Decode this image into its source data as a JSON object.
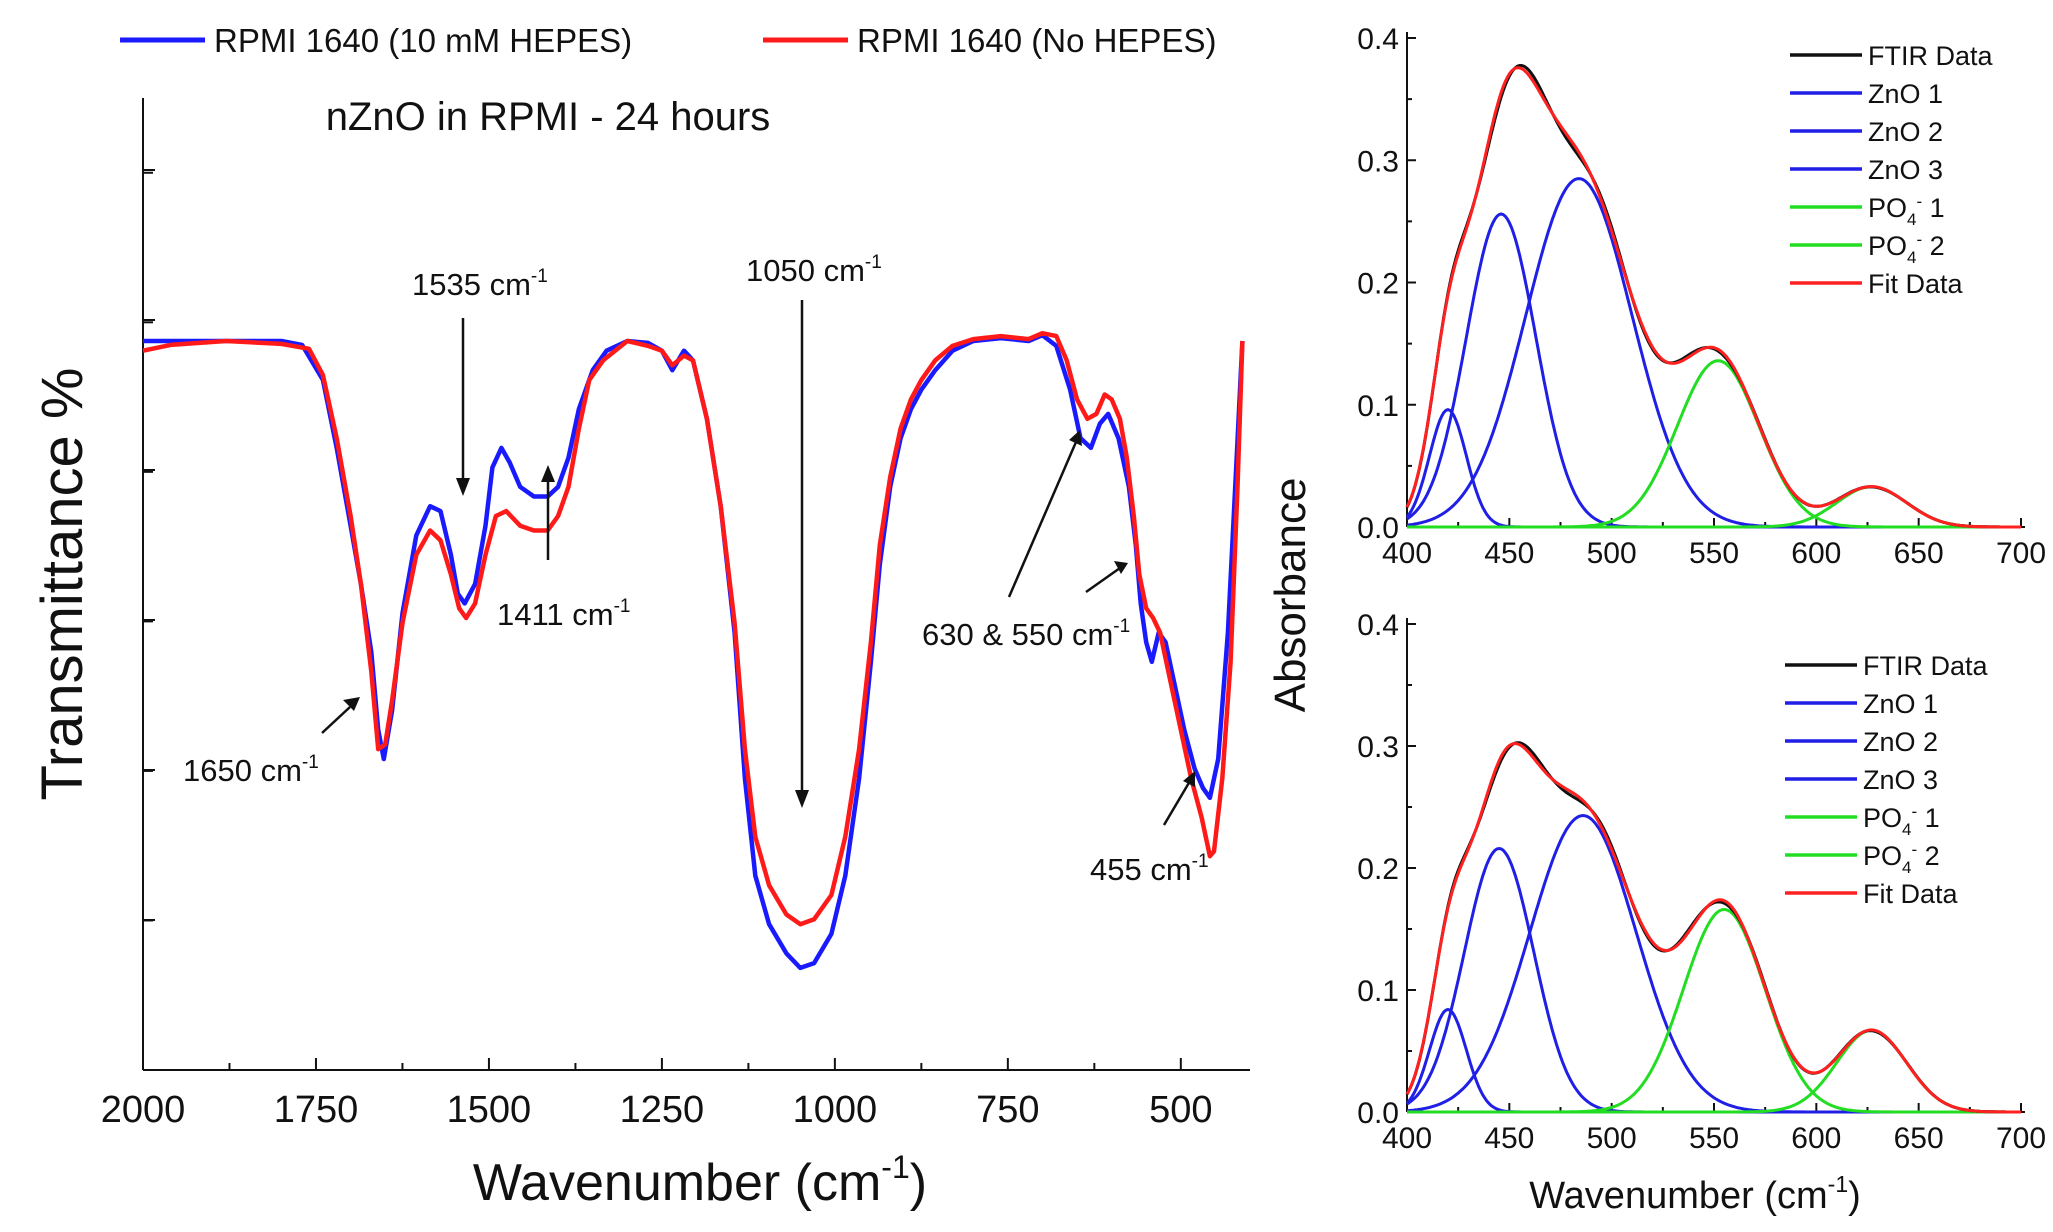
{
  "chart_data": [
    {
      "id": "left",
      "type": "line",
      "title": "nZnO in RPMI - 24 hours",
      "xlabel": "Wavenumber (cm",
      "xlabel_sup": "-1",
      "xlabel_tail": ")",
      "ylabel": "Transmittance %",
      "xlim": [
        2000,
        400
      ],
      "ylim": [
        0,
        100
      ],
      "xticks": [
        2000,
        1750,
        1500,
        1250,
        1000,
        750,
        500
      ],
      "yticks_labeled": false,
      "legend": {
        "placement": "top, above plot"
      },
      "series": [
        {
          "name": "RPMI 1640 (10 mM HEPES)",
          "color": "#1a1aff",
          "points": [
            [
              2000,
              75
            ],
            [
              1900,
              75
            ],
            [
              1800,
              75
            ],
            [
              1770,
              74.6
            ],
            [
              1740,
              71
            ],
            [
              1720,
              64
            ],
            [
              1700,
              56
            ],
            [
              1685,
              50
            ],
            [
              1670,
              43
            ],
            [
              1660,
              35
            ],
            [
              1652,
              32
            ],
            [
              1640,
              37
            ],
            [
              1625,
              47
            ],
            [
              1605,
              55
            ],
            [
              1585,
              58
            ],
            [
              1570,
              57.5
            ],
            [
              1555,
              53
            ],
            [
              1545,
              49
            ],
            [
              1535,
              48
            ],
            [
              1520,
              50
            ],
            [
              1505,
              56
            ],
            [
              1495,
              62
            ],
            [
              1482,
              64
            ],
            [
              1470,
              62.5
            ],
            [
              1455,
              60
            ],
            [
              1435,
              59
            ],
            [
              1415,
              59
            ],
            [
              1400,
              60
            ],
            [
              1385,
              63
            ],
            [
              1370,
              68
            ],
            [
              1350,
              72
            ],
            [
              1330,
              74
            ],
            [
              1300,
              75
            ],
            [
              1270,
              74.8
            ],
            [
              1250,
              74
            ],
            [
              1235,
              72
            ],
            [
              1218,
              74
            ],
            [
              1205,
              73
            ],
            [
              1185,
              67
            ],
            [
              1165,
              58
            ],
            [
              1145,
              45
            ],
            [
              1130,
              30
            ],
            [
              1115,
              20
            ],
            [
              1095,
              15
            ],
            [
              1070,
              12
            ],
            [
              1050,
              10.5
            ],
            [
              1030,
              11
            ],
            [
              1005,
              14
            ],
            [
              985,
              20
            ],
            [
              965,
              30
            ],
            [
              948,
              42
            ],
            [
              935,
              52
            ],
            [
              920,
              60
            ],
            [
              905,
              65
            ],
            [
              890,
              68
            ],
            [
              875,
              70
            ],
            [
              855,
              72
            ],
            [
              830,
              74
            ],
            [
              800,
              75
            ],
            [
              760,
              75.3
            ],
            [
              720,
              75
            ],
            [
              700,
              75.6
            ],
            [
              680,
              74.5
            ],
            [
              660,
              70
            ],
            [
              645,
              65
            ],
            [
              630,
              64
            ],
            [
              617,
              66.5
            ],
            [
              605,
              67.5
            ],
            [
              590,
              65
            ],
            [
              575,
              60
            ],
            [
              565,
              54
            ],
            [
              558,
              48
            ],
            [
              550,
              44
            ],
            [
              542,
              42
            ],
            [
              532,
              45
            ],
            [
              522,
              44
            ],
            [
              510,
              40
            ],
            [
              495,
              35
            ],
            [
              480,
              31
            ],
            [
              468,
              29
            ],
            [
              458,
              28
            ],
            [
              446,
              32
            ],
            [
              432,
              45
            ],
            [
              420,
              62
            ],
            [
              411,
              75
            ]
          ]
        },
        {
          "name": "RPMI 1640 (No HEPES)",
          "color": "#ff1a1a",
          "points": [
            [
              2000,
              74
            ],
            [
              1960,
              74.6
            ],
            [
              1880,
              75
            ],
            [
              1800,
              74.7
            ],
            [
              1760,
              74.2
            ],
            [
              1740,
              71.5
            ],
            [
              1720,
              65
            ],
            [
              1700,
              57
            ],
            [
              1685,
              50
            ],
            [
              1670,
              41
            ],
            [
              1660,
              33
            ],
            [
              1650,
              33.5
            ],
            [
              1640,
              38
            ],
            [
              1625,
              46
            ],
            [
              1605,
              53
            ],
            [
              1585,
              55.5
            ],
            [
              1570,
              54.5
            ],
            [
              1555,
              51
            ],
            [
              1543,
              47.5
            ],
            [
              1533,
              46.5
            ],
            [
              1520,
              48
            ],
            [
              1505,
              53
            ],
            [
              1490,
              57
            ],
            [
              1475,
              57.5
            ],
            [
              1455,
              56
            ],
            [
              1435,
              55.5
            ],
            [
              1415,
              55.5
            ],
            [
              1400,
              57
            ],
            [
              1385,
              60
            ],
            [
              1370,
              66
            ],
            [
              1355,
              71
            ],
            [
              1335,
              73
            ],
            [
              1300,
              75
            ],
            [
              1270,
              74.5
            ],
            [
              1250,
              74
            ],
            [
              1235,
              72.5
            ],
            [
              1218,
              73.5
            ],
            [
              1205,
              73
            ],
            [
              1185,
              67
            ],
            [
              1165,
              58
            ],
            [
              1145,
              46
            ],
            [
              1130,
              33
            ],
            [
              1115,
              24
            ],
            [
              1095,
              19
            ],
            [
              1070,
              16
            ],
            [
              1050,
              15
            ],
            [
              1030,
              15.5
            ],
            [
              1005,
              18
            ],
            [
              985,
              24
            ],
            [
              965,
              33
            ],
            [
              948,
              44
            ],
            [
              935,
              54
            ],
            [
              920,
              61
            ],
            [
              905,
              66
            ],
            [
              890,
              69
            ],
            [
              875,
              71
            ],
            [
              855,
              73
            ],
            [
              830,
              74.5
            ],
            [
              800,
              75.2
            ],
            [
              760,
              75.5
            ],
            [
              720,
              75.2
            ],
            [
              700,
              75.8
            ],
            [
              680,
              75.5
            ],
            [
              665,
              73
            ],
            [
              650,
              69
            ],
            [
              635,
              67
            ],
            [
              622,
              67.5
            ],
            [
              610,
              69.5
            ],
            [
              600,
              69
            ],
            [
              588,
              67
            ],
            [
              578,
              63
            ],
            [
              568,
              57
            ],
            [
              560,
              51
            ],
            [
              550,
              47.5
            ],
            [
              540,
              46.5
            ],
            [
              530,
              45
            ],
            [
              515,
              40
            ],
            [
              500,
              35
            ],
            [
              485,
              30
            ],
            [
              470,
              26
            ],
            [
              458,
              22
            ],
            [
              452,
              22.5
            ],
            [
              440,
              30
            ],
            [
              428,
              42
            ],
            [
              418,
              60
            ],
            [
              411,
              75
            ]
          ]
        }
      ],
      "annotations": [
        {
          "label": "1535 cm",
          "sup": "-1"
        },
        {
          "label": "1411 cm",
          "sup": "-1"
        },
        {
          "label": "1050 cm",
          "sup": "-1"
        },
        {
          "label": "1650 cm",
          "sup": "-1"
        },
        {
          "label": "630 & 550 cm",
          "sup": "-1"
        },
        {
          "label": "455 cm",
          "sup": "-1"
        }
      ]
    },
    {
      "id": "top-right",
      "type": "line",
      "xlim": [
        400,
        700
      ],
      "ylim": [
        0,
        0.4
      ],
      "xticks": [
        400,
        450,
        500,
        550,
        600,
        650,
        700
      ],
      "yticks": [
        0.0,
        0.1,
        0.2,
        0.3,
        0.4
      ],
      "components": [
        {
          "name": "ZnO 1",
          "color": "#1f1fe6",
          "amp": 0.096,
          "center": 420,
          "sigma": 9
        },
        {
          "name": "ZnO 2",
          "color": "#1f1fe6",
          "amp": 0.256,
          "center": 446,
          "sigma": 17
        },
        {
          "name": "ZnO 3",
          "color": "#1f1fe6",
          "amp": 0.285,
          "center": 484,
          "sigma": 26
        },
        {
          "name": "PO4- 1",
          "color": "#22dd22",
          "amp": 0.136,
          "center": 552,
          "sigma": 20
        },
        {
          "name": "PO4- 2",
          "color": "#22dd22",
          "amp": 0.033,
          "center": 627,
          "sigma": 17
        }
      ],
      "fit_name": "Fit Data",
      "fit_color": "#ff2020",
      "data_name": "FTIR Data",
      "data_color": "#111111"
    },
    {
      "id": "bottom-right",
      "type": "line",
      "xlim": [
        400,
        700
      ],
      "ylim": [
        0,
        0.4
      ],
      "xticks": [
        400,
        450,
        500,
        550,
        600,
        650,
        700
      ],
      "yticks": [
        0.0,
        0.1,
        0.2,
        0.3,
        0.4
      ],
      "components": [
        {
          "name": "ZnO 1",
          "color": "#1f1fe6",
          "amp": 0.084,
          "center": 420,
          "sigma": 9
        },
        {
          "name": "ZnO 2",
          "color": "#1f1fe6",
          "amp": 0.216,
          "center": 445,
          "sigma": 17
        },
        {
          "name": "ZnO 3",
          "color": "#1f1fe6",
          "amp": 0.243,
          "center": 486,
          "sigma": 26
        },
        {
          "name": "PO4- 1",
          "color": "#22dd22",
          "amp": 0.166,
          "center": 555,
          "sigma": 20
        },
        {
          "name": "PO4- 2",
          "color": "#22dd22",
          "amp": 0.067,
          "center": 627,
          "sigma": 17
        }
      ],
      "fit_name": "Fit Data",
      "fit_color": "#ff2020",
      "data_name": "FTIR Data",
      "data_color": "#111111"
    }
  ],
  "right_panels": {
    "ylabel": "Absorbance",
    "xlabel": "Wavenumber (cm",
    "xlabel_sup": "-1",
    "xlabel_tail": ")",
    "legend": [
      "FTIR Data",
      "ZnO 1",
      "ZnO 2",
      "ZnO 3",
      "PO4- 1",
      "PO4- 2",
      "Fit Data"
    ],
    "legend_colors": [
      "#111111",
      "#1f1fe6",
      "#1f1fe6",
      "#1f1fe6",
      "#22dd22",
      "#22dd22",
      "#ff2020"
    ],
    "tick_labels_y": [
      "0.0",
      "0.1",
      "0.2",
      "0.3",
      "0.4"
    ],
    "tick_labels_x": [
      "400",
      "450",
      "500",
      "550",
      "600",
      "650",
      "700"
    ]
  },
  "left_legend": [
    "RPMI 1640 (10 mM HEPES)",
    "RPMI 1640 (No HEPES)"
  ],
  "left_tick_labels_x": [
    "2000",
    "1750",
    "1500",
    "1250",
    "1000",
    "750",
    "500"
  ],
  "po4_label": {
    "base": "PO",
    "sub": "4",
    "sup": "-"
  },
  "po4_suffix": [
    "1",
    "2"
  ]
}
